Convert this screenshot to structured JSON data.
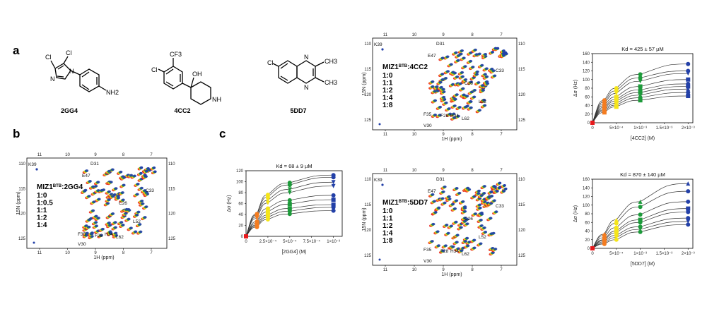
{
  "figure": {
    "panels": {
      "a": "a",
      "b": "b",
      "c": "c"
    },
    "compounds": [
      {
        "id": "2GG4",
        "atoms": [
          "Cl",
          "Cl",
          "N",
          "N",
          "NH2"
        ]
      },
      {
        "id": "4CC2",
        "atoms": [
          "Cl",
          "CF3",
          "OH",
          "NH"
        ]
      },
      {
        "id": "5DD7",
        "atoms": [
          "Cl",
          "N",
          "N",
          "CH3",
          "CH3"
        ]
      }
    ],
    "nmr_spectra": [
      {
        "key": "b",
        "title_main": "MIZ1",
        "title_sup": "BTB",
        "title_rest": ":2GG4",
        "ratios": [
          {
            "label": "1:0",
            "color": "#e8191c"
          },
          {
            "label": "1:0.5",
            "color": "#f47c20"
          },
          {
            "label": "1:1",
            "color": "#f5e51a"
          },
          {
            "label": "1:2",
            "color": "#1d9a3a"
          },
          {
            "label": "1:4",
            "color": "#2340a8"
          }
        ],
        "x_ticks": [
          "11",
          "10",
          "9",
          "8",
          "7"
        ],
        "y_ticks": [
          "110",
          "115",
          "120",
          "125"
        ],
        "x_label": "1H (ppm)",
        "y_label": "15N (ppm)",
        "peaks": [
          "K39",
          "D31",
          "E47",
          "C33",
          "C26",
          "L52",
          "F35",
          "F28",
          "V30",
          "H34",
          "L62"
        ]
      },
      {
        "key": "c1",
        "title_main": "MIZ1",
        "title_sup": "BTB",
        "title_rest": ":4CC2",
        "ratios": [
          {
            "label": "1:0",
            "color": "#e8191c"
          },
          {
            "label": "1:1",
            "color": "#f47c20"
          },
          {
            "label": "1:2",
            "color": "#f5e51a"
          },
          {
            "label": "1:4",
            "color": "#1d9a3a"
          },
          {
            "label": "1:8",
            "color": "#2340a8"
          }
        ],
        "x_ticks": [
          "11",
          "10",
          "9",
          "8",
          "7"
        ],
        "y_ticks": [
          "110",
          "115",
          "120",
          "125"
        ],
        "x_label": "1H (ppm)",
        "y_label": "15N (ppm)",
        "peaks": [
          "K39",
          "D31",
          "E47",
          "C33",
          "C26",
          "L52",
          "F35",
          "F28",
          "V30",
          "H34",
          "L62"
        ]
      },
      {
        "key": "c2",
        "title_main": "MIZ1",
        "title_sup": "BTB",
        "title_rest": ":5DD7",
        "ratios": [
          {
            "label": "1:0",
            "color": "#e8191c"
          },
          {
            "label": "1:1",
            "color": "#f47c20"
          },
          {
            "label": "1:2",
            "color": "#f5e51a"
          },
          {
            "label": "1:4",
            "color": "#1d9a3a"
          },
          {
            "label": "1:8",
            "color": "#2340a8"
          }
        ],
        "x_ticks": [
          "11",
          "10",
          "9",
          "8",
          "7"
        ],
        "y_ticks": [
          "110",
          "115",
          "120",
          "125"
        ],
        "x_label": "1H (ppm)",
        "y_label": "15N (ppm)",
        "peaks": [
          "K39",
          "D31",
          "E47",
          "C33",
          "C26",
          "L52",
          "F35",
          "F28",
          "V30",
          "H34",
          "L62"
        ]
      }
    ]
  },
  "chart_data": [
    {
      "type": "scatter",
      "id": "2GG4",
      "title": "Kd = 68 ± 9 µM",
      "xlabel": "[2GG4] (M)",
      "ylabel": "Δσ (Hz)",
      "x_tick_labels": [
        "0",
        "2.5×10⁻⁴",
        "5×10⁻⁴",
        "7.5×10⁻⁴",
        "1×10⁻³"
      ],
      "y_tick_labels": [
        "0",
        "20",
        "40",
        "60",
        "80",
        "100",
        "120"
      ],
      "xlim": [
        0,
        0.0011
      ],
      "ylim": [
        0,
        120
      ],
      "x": [
        0,
        0.000125,
        0.00025,
        0.0005,
        0.001
      ],
      "series": [
        {
          "values": [
            0,
            41,
            76,
            98,
            112
          ],
          "marker": "circle"
        },
        {
          "values": [
            0,
            39,
            72,
            94,
            108
          ],
          "marker": "circle"
        },
        {
          "values": [
            0,
            36,
            66,
            86,
            99
          ],
          "marker": "triangle-down"
        },
        {
          "values": [
            0,
            33,
            61,
            80,
            92
          ],
          "marker": "triangle-down"
        },
        {
          "values": [
            0,
            27,
            51,
            66,
            75
          ],
          "marker": "circle"
        },
        {
          "values": [
            0,
            24,
            45,
            59,
            67
          ],
          "marker": "square"
        },
        {
          "values": [
            0,
            21,
            39,
            51,
            58
          ],
          "marker": "square"
        },
        {
          "values": [
            0,
            19,
            35,
            46,
            53
          ],
          "marker": "circle"
        },
        {
          "values": [
            0,
            17,
            31,
            41,
            47
          ],
          "marker": "circle"
        }
      ],
      "point_colors": [
        "#e8191c",
        "#f47c20",
        "#f5e51a",
        "#1d9a3a",
        "#2340a8"
      ]
    },
    {
      "type": "scatter",
      "id": "4CC2",
      "title": "Kd = 425 ± 57 µM",
      "xlabel": "[4CC2] (M)",
      "ylabel": "Δσ (Hz)",
      "x_tick_labels": [
        "0",
        "5×10⁻⁴",
        "1×10⁻³",
        "1.5×10⁻³",
        "2×10⁻³"
      ],
      "y_tick_labels": [
        "0",
        "20",
        "40",
        "60",
        "80",
        "100",
        "120",
        "140",
        "160"
      ],
      "xlim": [
        0,
        0.0021
      ],
      "ylim": [
        0,
        160
      ],
      "x": [
        0,
        0.00025,
        0.0005,
        0.001,
        0.002
      ],
      "series": [
        {
          "values": [
            0,
            52,
            80,
            112,
            136
          ],
          "marker": "circle"
        },
        {
          "values": [
            0,
            48,
            74,
            104,
            120
          ],
          "marker": "circle"
        },
        {
          "values": [
            0,
            44,
            68,
            96,
            114
          ],
          "marker": "triangle-down"
        },
        {
          "values": [
            0,
            40,
            60,
            84,
            100
          ],
          "marker": "square"
        },
        {
          "values": [
            0,
            36,
            54,
            76,
            90
          ],
          "marker": "circle"
        },
        {
          "values": [
            0,
            33,
            50,
            70,
            84
          ],
          "marker": "square"
        },
        {
          "values": [
            0,
            30,
            45,
            64,
            78
          ],
          "marker": "triangle-up"
        },
        {
          "values": [
            0,
            27,
            41,
            58,
            70
          ],
          "marker": "circle"
        },
        {
          "values": [
            0,
            24,
            37,
            52,
            62
          ],
          "marker": "square"
        }
      ],
      "point_colors": [
        "#e8191c",
        "#f47c20",
        "#f5e51a",
        "#1d9a3a",
        "#2340a8"
      ]
    },
    {
      "type": "scatter",
      "id": "5DD7",
      "title": "Kd = 870 ± 140 µM",
      "xlabel": "[5DD7] (M)",
      "ylabel": "Δσ (Hz)",
      "x_tick_labels": [
        "0",
        "5×10⁻⁴",
        "1×10⁻³",
        "1.5×10⁻³",
        "2×10⁻³"
      ],
      "y_tick_labels": [
        "0",
        "20",
        "40",
        "60",
        "80",
        "100",
        "120",
        "140",
        "160"
      ],
      "xlim": [
        0,
        0.0021
      ],
      "ylim": [
        0,
        160
      ],
      "x": [
        0,
        0.00025,
        0.0005,
        0.001,
        0.002
      ],
      "series": [
        {
          "values": [
            0,
            33,
            66,
            108,
            150
          ],
          "marker": "triangle-up"
        },
        {
          "values": [
            0,
            30,
            58,
            96,
            132
          ],
          "marker": "circle"
        },
        {
          "values": [
            0,
            25,
            48,
            78,
            108
          ],
          "marker": "circle"
        },
        {
          "values": [
            0,
            20,
            40,
            66,
            92
          ],
          "marker": "square"
        },
        {
          "values": [
            0,
            18,
            36,
            60,
            84
          ],
          "marker": "circle"
        },
        {
          "values": [
            0,
            15,
            30,
            50,
            70
          ],
          "marker": "circle"
        },
        {
          "values": [
            0,
            12,
            25,
            44,
            62
          ],
          "marker": "triangle-down"
        },
        {
          "values": [
            0,
            10,
            20,
            38,
            55
          ],
          "marker": "circle"
        }
      ],
      "point_colors": [
        "#e8191c",
        "#f47c20",
        "#f5e51a",
        "#1d9a3a",
        "#2340a8"
      ]
    }
  ]
}
